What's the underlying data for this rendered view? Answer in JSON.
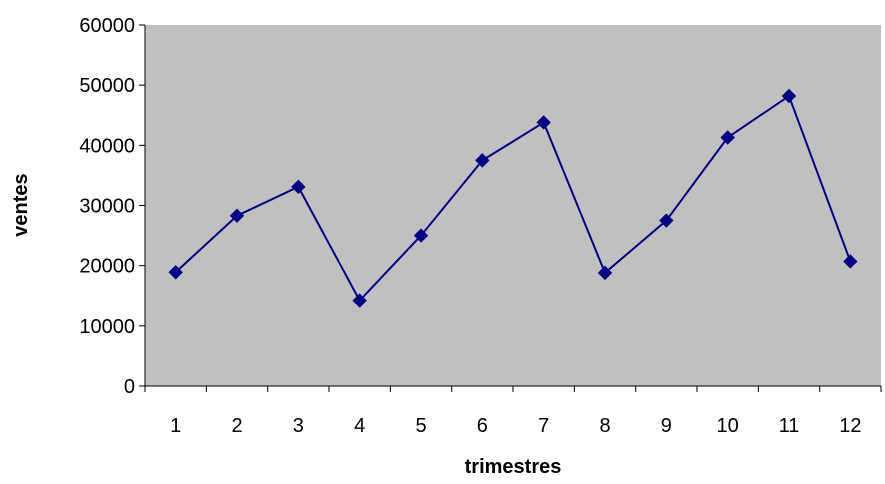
{
  "chart_data": {
    "type": "line",
    "title": "",
    "xlabel": "trimestres",
    "ylabel": "ventes",
    "categories": [
      "1",
      "2",
      "3",
      "4",
      "5",
      "6",
      "7",
      "8",
      "9",
      "10",
      "11",
      "12"
    ],
    "series": [
      {
        "values": [
          18900,
          28300,
          33100,
          14200,
          25000,
          37500,
          43800,
          18800,
          27500,
          41300,
          48200,
          20700
        ]
      }
    ],
    "ylim": [
      0,
      60000
    ],
    "yticks": [
      0,
      10000,
      20000,
      30000,
      40000,
      50000,
      60000
    ],
    "grid": false,
    "legend": "none",
    "plot_background": "#c0c0c0",
    "line_color": "#000080"
  }
}
